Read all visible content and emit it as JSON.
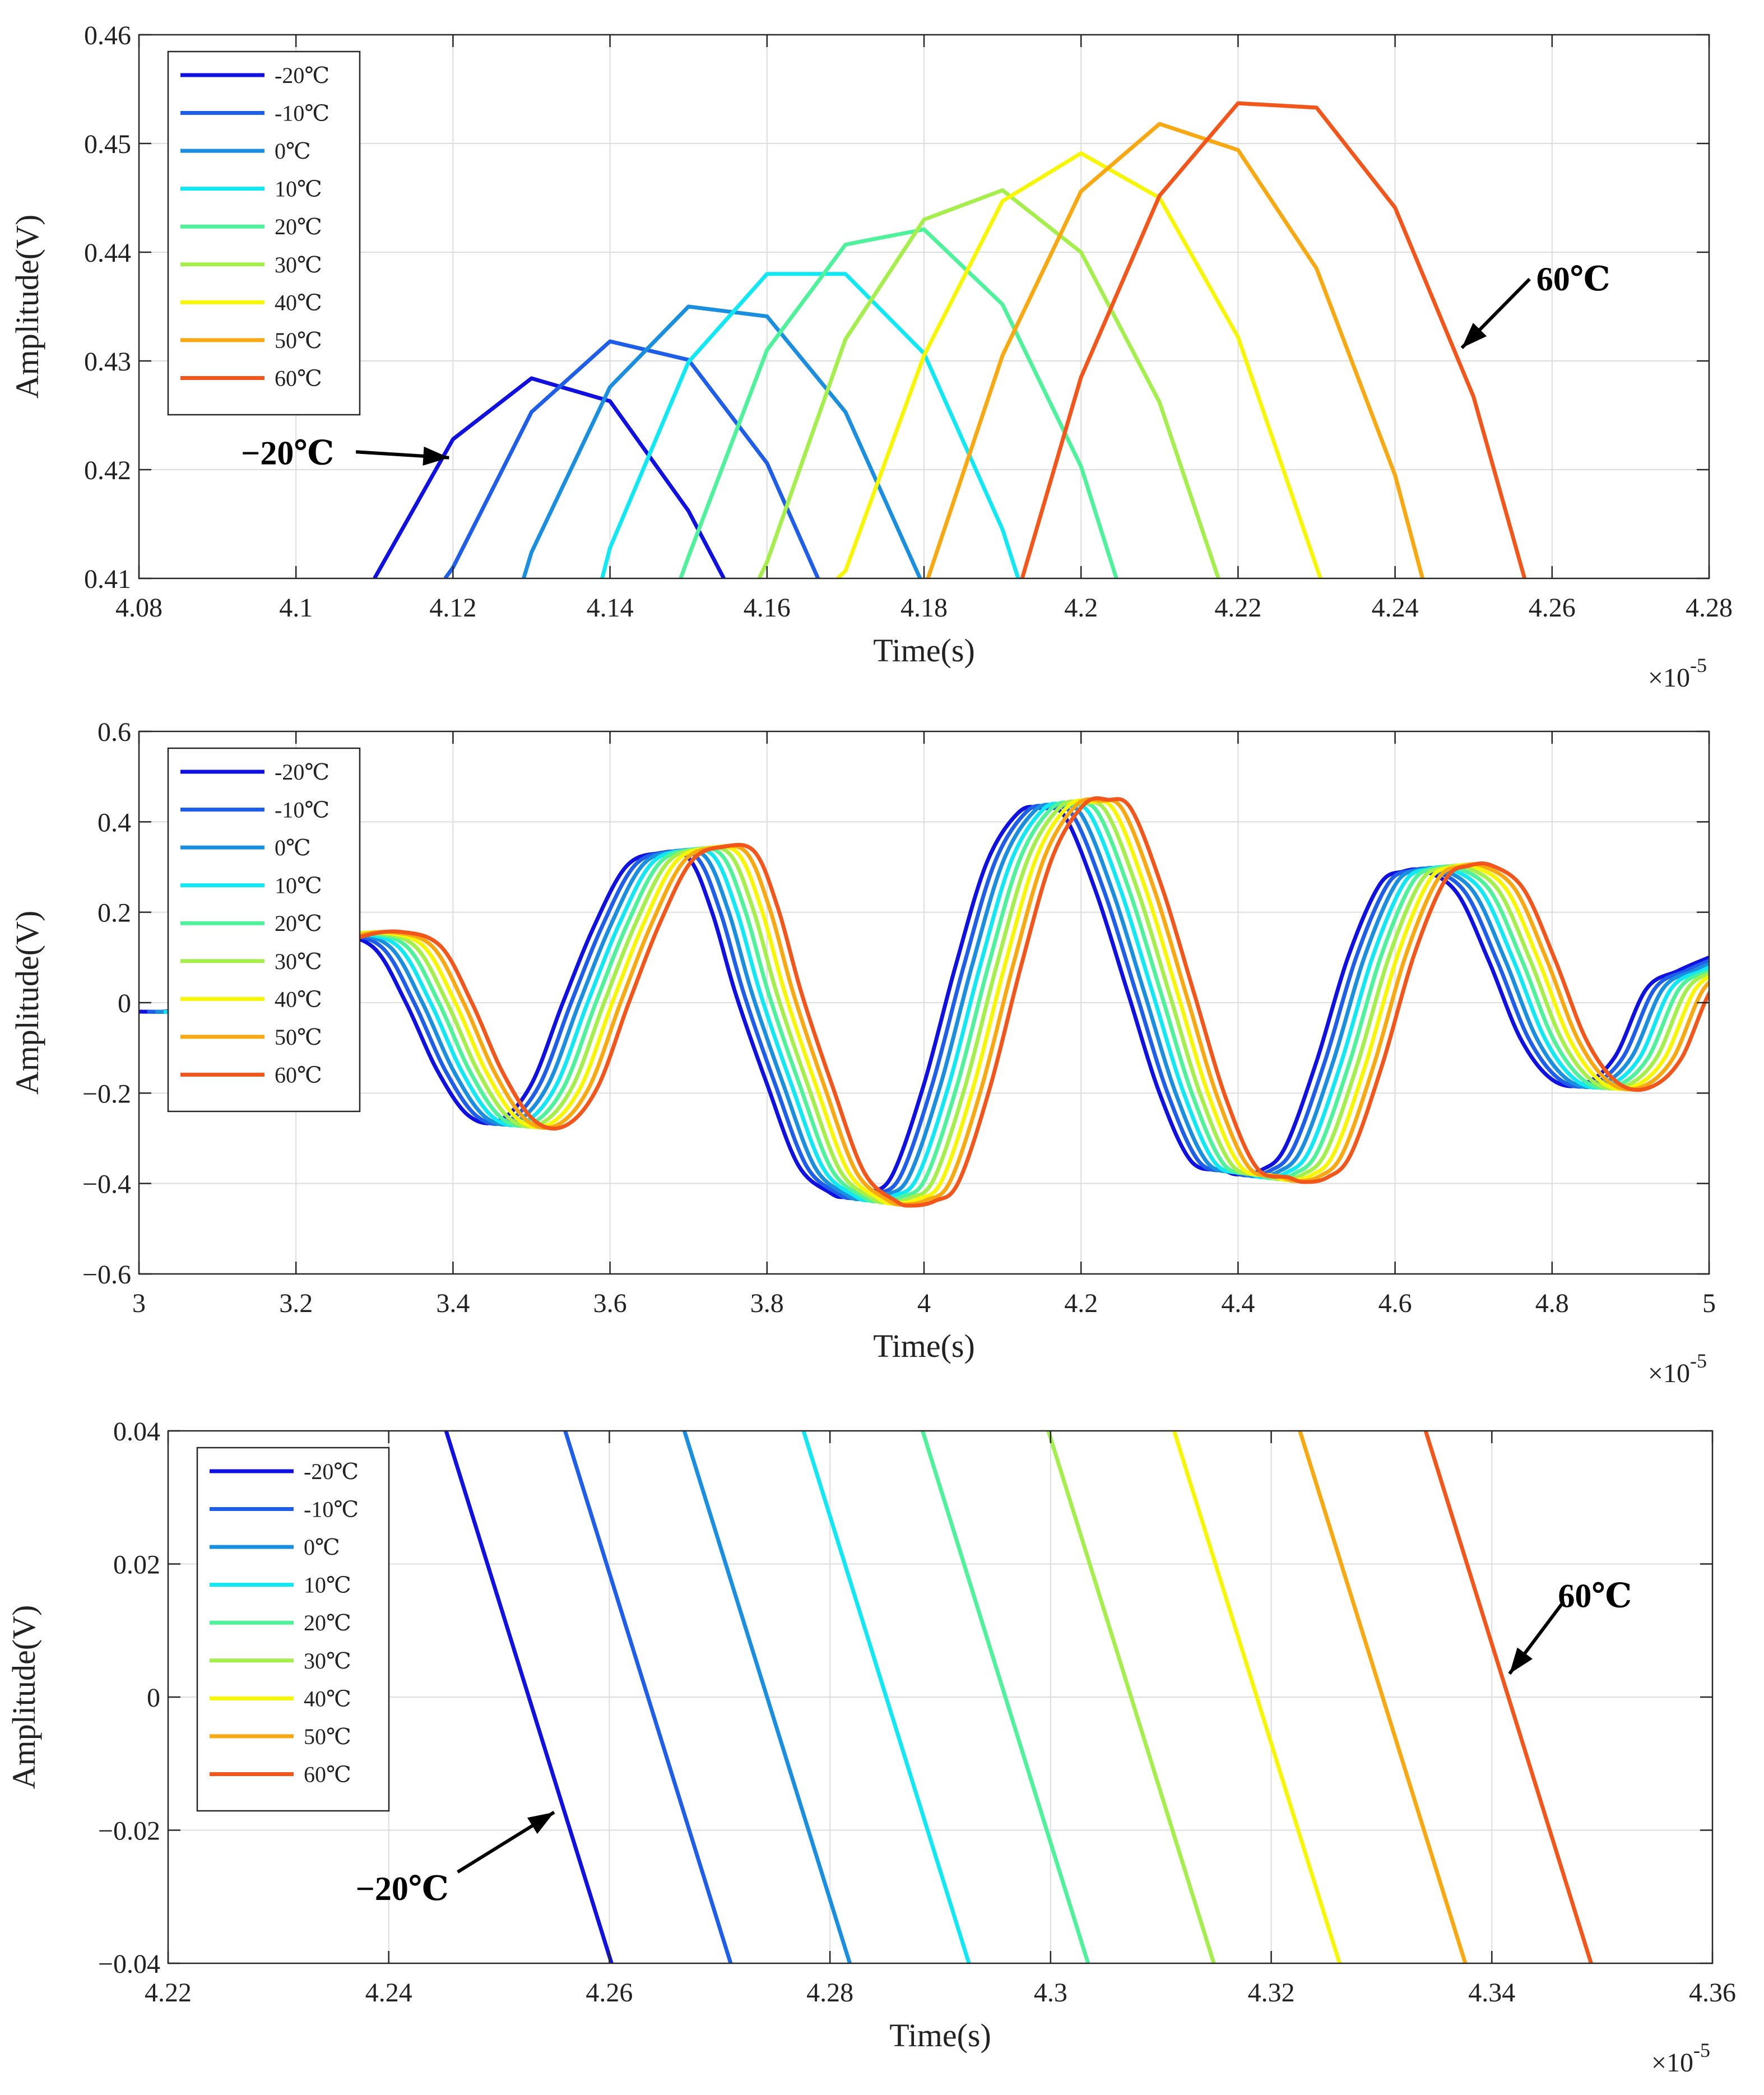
{
  "chart_data": [
    {
      "type": "line",
      "title": "",
      "xlabel": "Time(s)",
      "ylabel": "Amplitude(V)",
      "x_exponent_label": "×10",
      "x_exponent": "-5",
      "xlim": [
        4.08,
        4.28
      ],
      "ylim": [
        0.41,
        0.46
      ],
      "xticks": [
        "4.08",
        "4.1",
        "4.12",
        "4.14",
        "4.16",
        "4.18",
        "4.2",
        "4.22",
        "4.24",
        "4.26",
        "4.28"
      ],
      "yticks": [
        "0.41",
        "0.42",
        "0.43",
        "0.44",
        "0.45",
        "0.46"
      ],
      "grid": true,
      "legend_position": "top-left",
      "series": [
        {
          "name": "-20℃",
          "color": "#1010e0",
          "x": [
            4.11,
            4.12,
            4.13,
            4.14,
            4.15,
            4.1545
          ],
          "y": [
            0.41,
            0.4228,
            0.4284,
            0.4263,
            0.4162,
            0.41
          ]
        },
        {
          "name": "-10℃",
          "color": "#1e5ee8",
          "x": [
            4.119,
            4.12,
            4.13,
            4.14,
            4.15,
            4.16,
            4.1665
          ],
          "y": [
            0.41,
            0.411,
            0.4253,
            0.4318,
            0.4301,
            0.4206,
            0.41
          ]
        },
        {
          "name": "0℃",
          "color": "#1a8fe0",
          "x": [
            4.129,
            4.13,
            4.14,
            4.15,
            4.16,
            4.17,
            4.1795
          ],
          "y": [
            0.41,
            0.4124,
            0.4276,
            0.435,
            0.4341,
            0.4253,
            0.41
          ]
        },
        {
          "name": "10℃",
          "color": "#10e8f4",
          "x": [
            4.139,
            4.14,
            4.15,
            4.16,
            4.17,
            4.18,
            4.19,
            4.192
          ],
          "y": [
            0.41,
            0.4128,
            0.4299,
            0.438,
            0.438,
            0.4307,
            0.4145,
            0.41
          ]
        },
        {
          "name": "20℃",
          "color": "#4ef29a",
          "x": [
            4.149,
            4.15,
            4.16,
            4.17,
            4.18,
            4.19,
            4.2,
            4.2045
          ],
          "y": [
            0.41,
            0.412,
            0.431,
            0.4407,
            0.4421,
            0.4352,
            0.4203,
            0.41
          ]
        },
        {
          "name": "30℃",
          "color": "#a4ef4c",
          "x": [
            4.159,
            4.16,
            4.17,
            4.18,
            4.19,
            4.2,
            4.21,
            4.2175
          ],
          "y": [
            0.41,
            0.4115,
            0.432,
            0.443,
            0.4457,
            0.44,
            0.4262,
            0.41
          ]
        },
        {
          "name": "40℃",
          "color": "#f7f705",
          "x": [
            4.169,
            4.17,
            4.18,
            4.19,
            4.2,
            4.21,
            4.22,
            4.2305
          ],
          "y": [
            0.41,
            0.4107,
            0.4305,
            0.4447,
            0.4491,
            0.445,
            0.4322,
            0.41
          ]
        },
        {
          "name": "50℃",
          "color": "#f8a810",
          "x": [
            4.1805,
            4.19,
            4.2,
            4.21,
            4.22,
            4.23,
            4.24,
            4.2435
          ],
          "y": [
            0.41,
            0.4305,
            0.4456,
            0.4518,
            0.4494,
            0.4385,
            0.4195,
            0.41
          ]
        },
        {
          "name": "60℃",
          "color": "#f2561a",
          "x": [
            4.1925,
            4.2,
            4.21,
            4.22,
            4.23,
            4.24,
            4.25,
            4.2565
          ],
          "y": [
            0.41,
            0.4285,
            0.4452,
            0.4537,
            0.4533,
            0.4441,
            0.4267,
            0.41
          ]
        }
      ],
      "annotations": [
        {
          "text": "−20℃",
          "x": 4.093,
          "y": 0.4205,
          "arrow_to": [
            4.1195,
            0.4211
          ]
        },
        {
          "text": "60℃",
          "x": 4.258,
          "y": 0.4365,
          "arrow_to": [
            4.2485,
            0.4312
          ]
        }
      ]
    },
    {
      "type": "line",
      "title": "",
      "xlabel": "Time(s)",
      "ylabel": "Amplitude(V)",
      "x_exponent_label": "×10",
      "x_exponent": "-5",
      "xlim": [
        3.0,
        5.0
      ],
      "ylim": [
        -0.6,
        0.6
      ],
      "xticks": [
        "3",
        "3.2",
        "3.4",
        "3.6",
        "3.8",
        "4",
        "4.2",
        "4.4",
        "4.6",
        "4.8",
        "5"
      ],
      "yticks": [
        "−0.6",
        "−0.4",
        "−0.2",
        "0",
        "0.2",
        "0.4",
        "0.6"
      ],
      "grid": true,
      "legend_position": "top-left",
      "waveform": {
        "base_x": [
          3.0,
          3.05,
          3.1,
          3.15,
          3.2,
          3.25,
          3.3,
          3.34,
          3.38,
          3.42,
          3.46,
          3.5,
          3.54,
          3.58,
          3.62,
          3.66,
          3.7,
          3.73,
          3.76,
          3.8,
          3.84,
          3.88,
          3.9,
          3.93,
          3.96,
          4.0,
          4.04,
          4.08,
          4.12,
          4.15,
          4.18,
          4.22,
          4.26,
          4.3,
          4.34,
          4.38,
          4.4,
          4.43,
          4.46,
          4.5,
          4.54,
          4.58,
          4.61,
          4.64,
          4.68,
          4.72,
          4.76,
          4.8,
          4.84,
          4.88,
          4.92,
          4.96,
          5.0
        ],
        "base_y": [
          -0.02,
          -0.015,
          0.03,
          0.1,
          0.14,
          0.15,
          0.12,
          0.0,
          -0.15,
          -0.25,
          -0.26,
          -0.18,
          0.0,
          0.17,
          0.3,
          0.33,
          0.32,
          0.2,
          0.02,
          -0.18,
          -0.36,
          -0.42,
          -0.43,
          -0.42,
          -0.38,
          -0.18,
          0.08,
          0.31,
          0.42,
          0.43,
          0.41,
          0.24,
          0.02,
          -0.2,
          -0.35,
          -0.37,
          -0.38,
          -0.37,
          -0.32,
          -0.13,
          0.1,
          0.26,
          0.29,
          0.29,
          0.24,
          0.09,
          -0.08,
          -0.17,
          -0.18,
          -0.12,
          0.03,
          0.07,
          0.1
        ],
        "shift_per_step": 0.0105,
        "peak_gain_per_step": 0.0055
      },
      "series_names": [
        "-20℃",
        "-10℃",
        "0℃",
        "10℃",
        "20℃",
        "30℃",
        "40℃",
        "50℃",
        "60℃"
      ]
    },
    {
      "type": "line",
      "title": "",
      "xlabel": "Time(s)",
      "ylabel": "Amplitude(V)",
      "x_exponent_label": "×10",
      "x_exponent": "-5",
      "xlim": [
        4.22,
        4.36
      ],
      "ylim": [
        -0.04,
        0.04
      ],
      "xticks": [
        "4.22",
        "4.24",
        "4.26",
        "4.28",
        "4.3",
        "4.32",
        "4.34",
        "4.36"
      ],
      "yticks": [
        "−0.04",
        "−0.02",
        "0",
        "0.02",
        "0.04"
      ],
      "grid": true,
      "legend_position": "top-left",
      "series": [
        {
          "name": "-20℃",
          "color": "#1010e0",
          "x": [
            4.2452,
            4.2602
          ],
          "y": [
            0.04,
            -0.04
          ]
        },
        {
          "name": "-10℃",
          "color": "#1e5ee8",
          "x": [
            4.256,
            4.271
          ],
          "y": [
            0.04,
            -0.04
          ]
        },
        {
          "name": "0℃",
          "color": "#1a8fe0",
          "x": [
            4.2668,
            4.2818
          ],
          "y": [
            0.04,
            -0.04
          ]
        },
        {
          "name": "10℃",
          "color": "#10e8f4",
          "x": [
            4.2776,
            4.2926
          ],
          "y": [
            0.04,
            -0.04
          ]
        },
        {
          "name": "20℃",
          "color": "#4ef29a",
          "x": [
            4.2884,
            4.3034
          ],
          "y": [
            0.04,
            -0.04
          ]
        },
        {
          "name": "30℃",
          "color": "#a4ef4c",
          "x": [
            4.2998,
            4.3148
          ],
          "y": [
            0.04,
            -0.04
          ]
        },
        {
          "name": "40℃",
          "color": "#f7f705",
          "x": [
            4.3112,
            4.3262
          ],
          "y": [
            0.04,
            -0.04
          ]
        },
        {
          "name": "50℃",
          "color": "#f8a810",
          "x": [
            4.3226,
            4.3376
          ],
          "y": [
            0.04,
            -0.04
          ]
        },
        {
          "name": "60℃",
          "color": "#f2561a",
          "x": [
            4.334,
            4.349
          ],
          "y": [
            0.04,
            -0.04
          ]
        }
      ],
      "annotations": [
        {
          "text": "−20℃",
          "x": 4.237,
          "y": -0.0305,
          "arrow_to": [
            4.255,
            -0.0173
          ]
        },
        {
          "text": "60℃",
          "x": 4.346,
          "y": 0.0135,
          "arrow_to": [
            4.3416,
            0.0035
          ]
        }
      ]
    }
  ]
}
